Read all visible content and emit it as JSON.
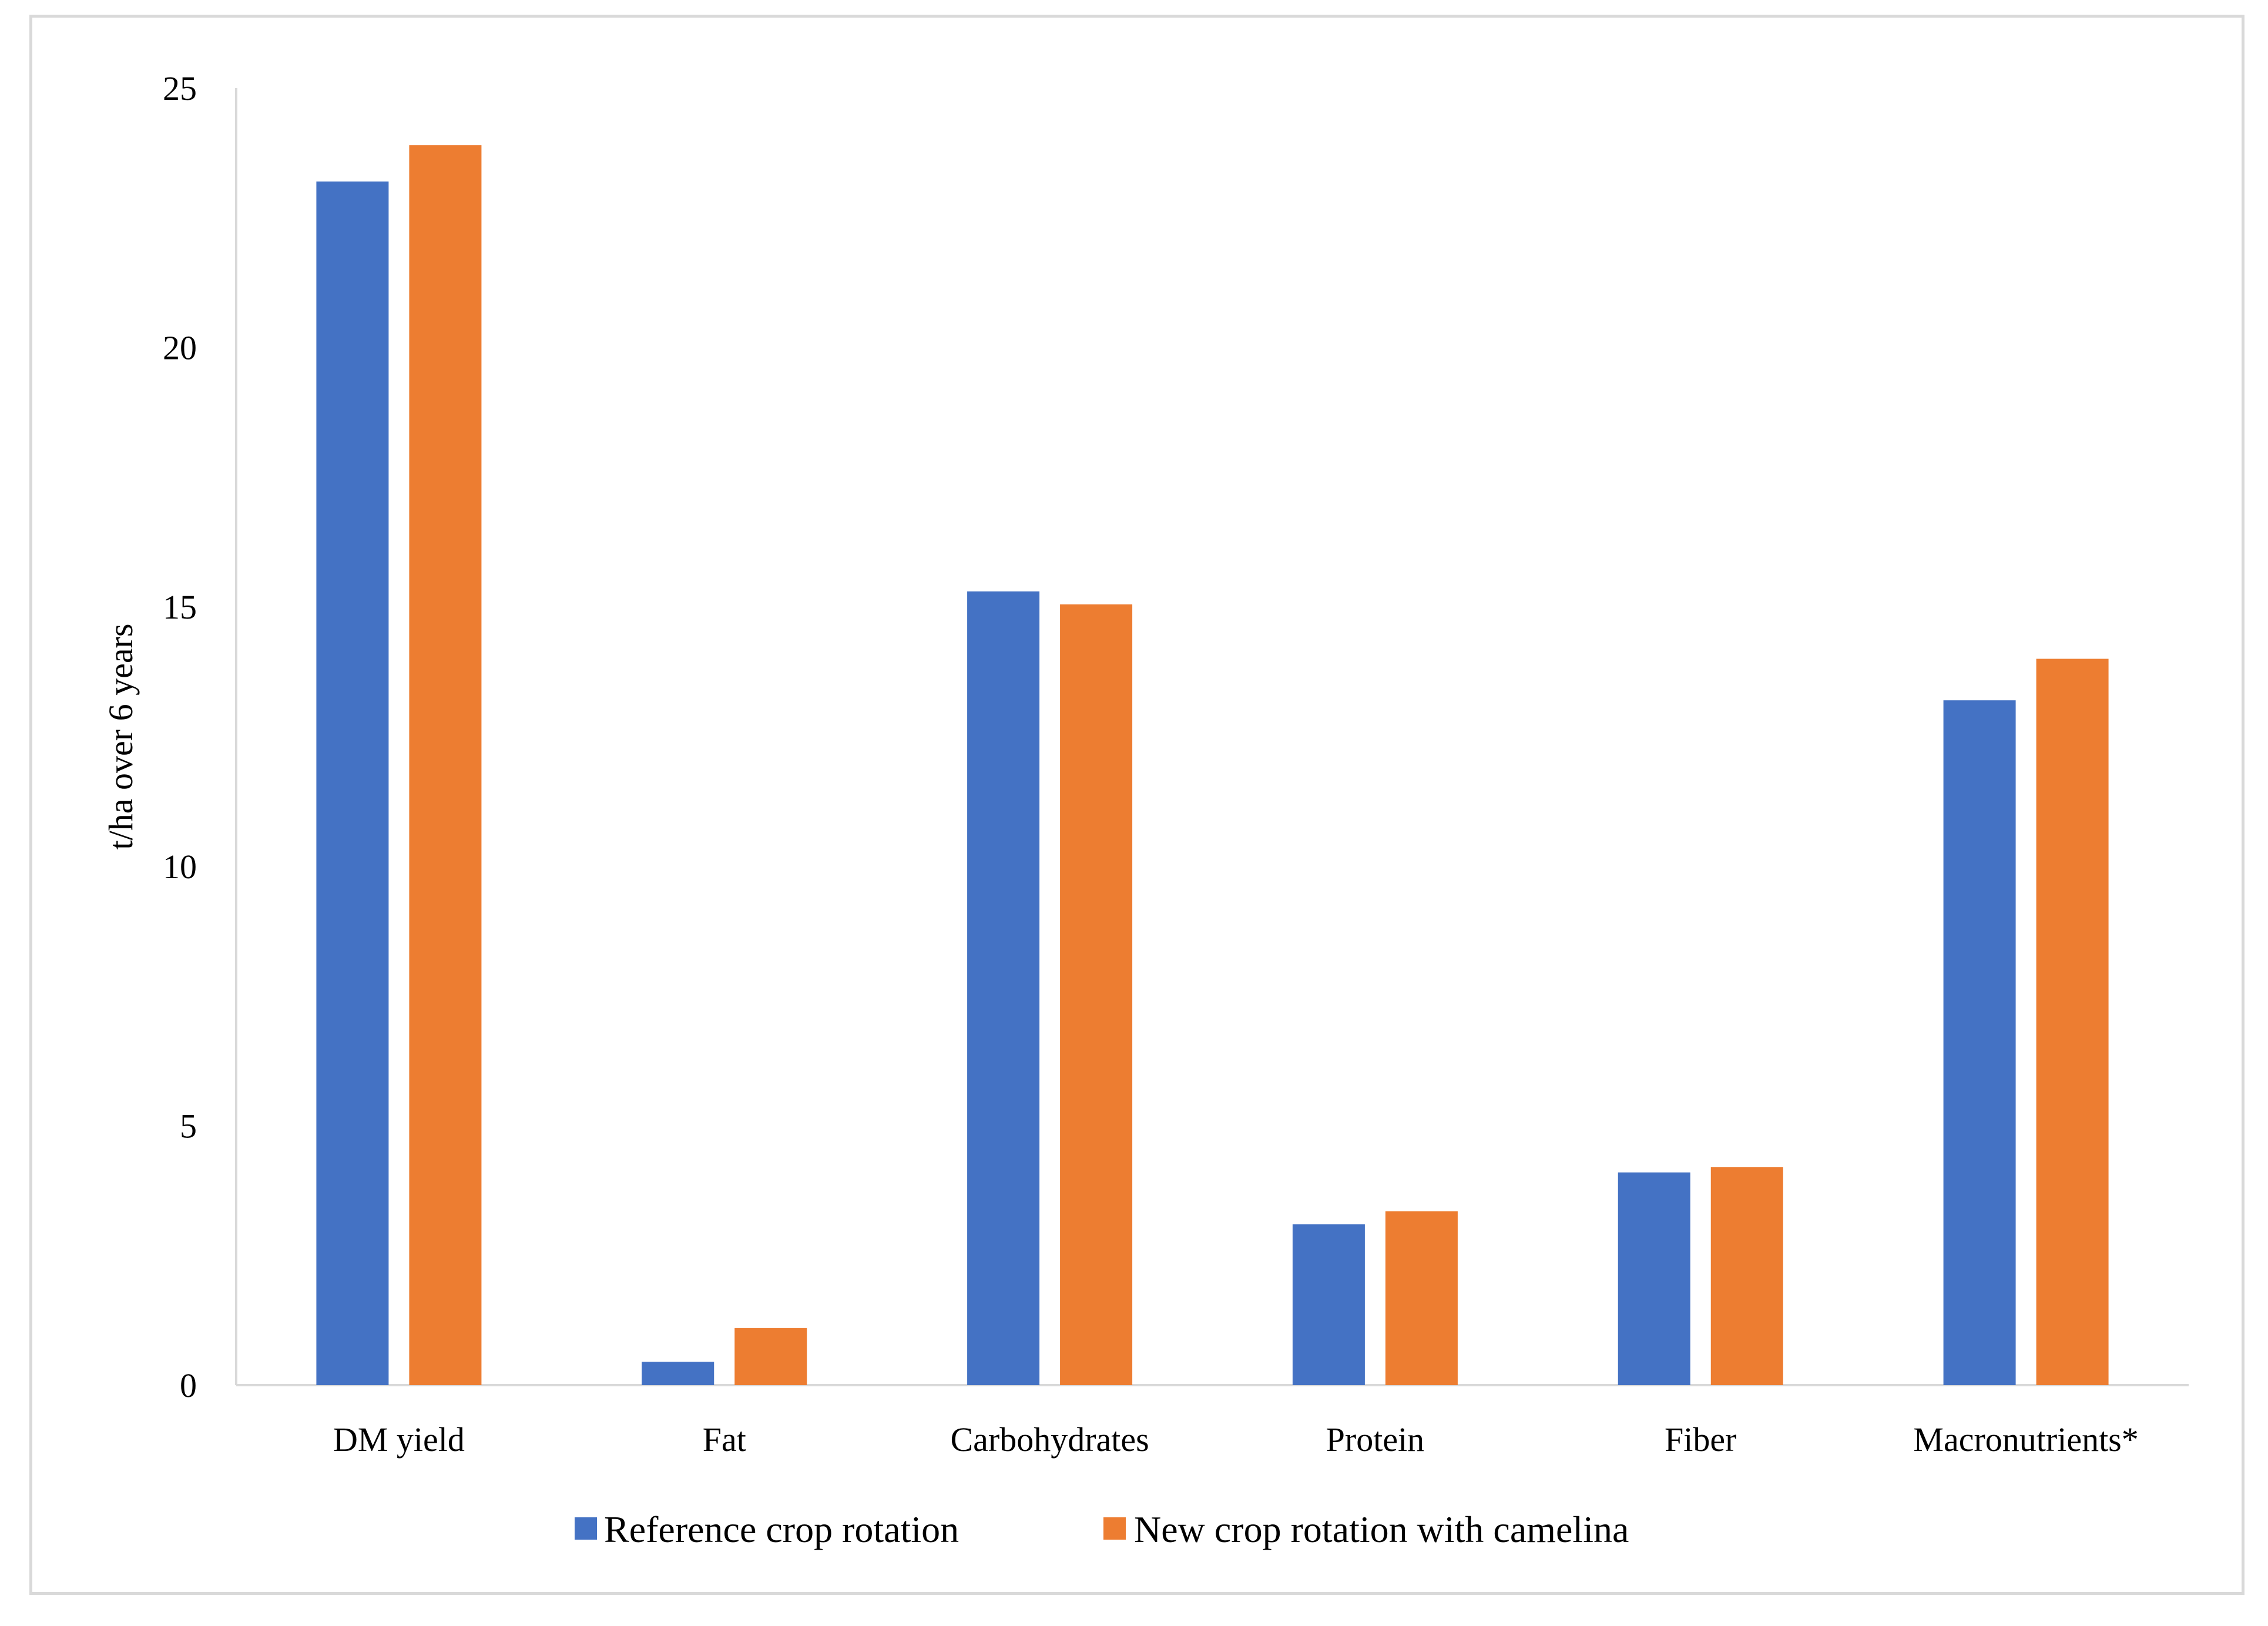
{
  "chart_data": {
    "type": "bar",
    "title": "",
    "xlabel": "",
    "ylabel": "t/ha over 6 years",
    "ylim": [
      0,
      25
    ],
    "yticks": [
      0,
      5,
      10,
      15,
      20,
      25
    ],
    "grid": false,
    "legend_position": "bottom",
    "categories": [
      "DM yield",
      "Fat",
      "Carbohydrates",
      "Protein",
      "Fiber",
      "Macronutrients*"
    ],
    "series": [
      {
        "name": "Reference crop rotation",
        "color": "#4472C4",
        "values": [
          23.2,
          0.45,
          15.3,
          3.1,
          4.1,
          13.2
        ]
      },
      {
        "name": "New crop rotation with camelina",
        "color": "#ED7D31",
        "values": [
          23.9,
          1.1,
          15.05,
          3.35,
          4.2,
          14.0
        ]
      }
    ]
  }
}
